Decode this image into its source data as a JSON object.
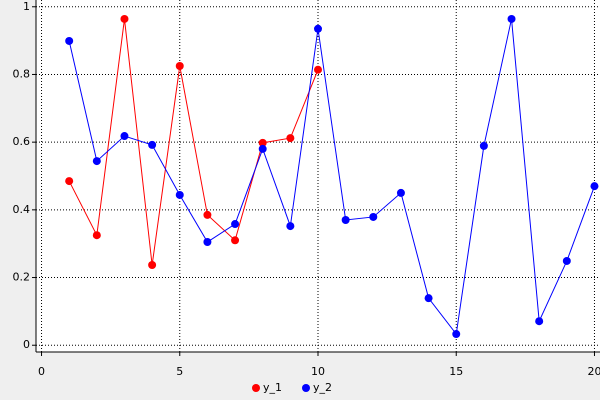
{
  "chart_data": {
    "type": "line",
    "x": [
      1,
      2,
      3,
      4,
      5,
      6,
      7,
      8,
      9,
      10,
      11,
      12,
      13,
      14,
      15,
      16,
      17,
      18,
      19,
      20
    ],
    "series": [
      {
        "name": "y_1",
        "color": "#ff0000",
        "values": [
          0.485,
          0.325,
          0.964,
          0.237,
          0.825,
          0.385,
          0.31,
          0.598,
          0.612,
          0.814,
          null,
          null,
          null,
          null,
          null,
          null,
          null,
          null,
          null,
          null
        ]
      },
      {
        "name": "y_2",
        "color": "#0000ff",
        "values": [
          0.899,
          0.544,
          0.618,
          0.592,
          0.444,
          0.305,
          0.358,
          0.58,
          0.352,
          0.935,
          0.37,
          0.379,
          0.45,
          0.139,
          0.033,
          0.589,
          0.964,
          0.071,
          0.249,
          0.47
        ]
      }
    ],
    "xlim": [
      -0.2,
      20.2
    ],
    "xticks": [
      0,
      5,
      10,
      15,
      20
    ],
    "ylim": [
      -0.02,
      1.02
    ],
    "yticks": [
      0,
      0.2,
      0.4,
      0.6,
      0.8,
      1
    ],
    "grid": true,
    "legend": "bottom"
  }
}
